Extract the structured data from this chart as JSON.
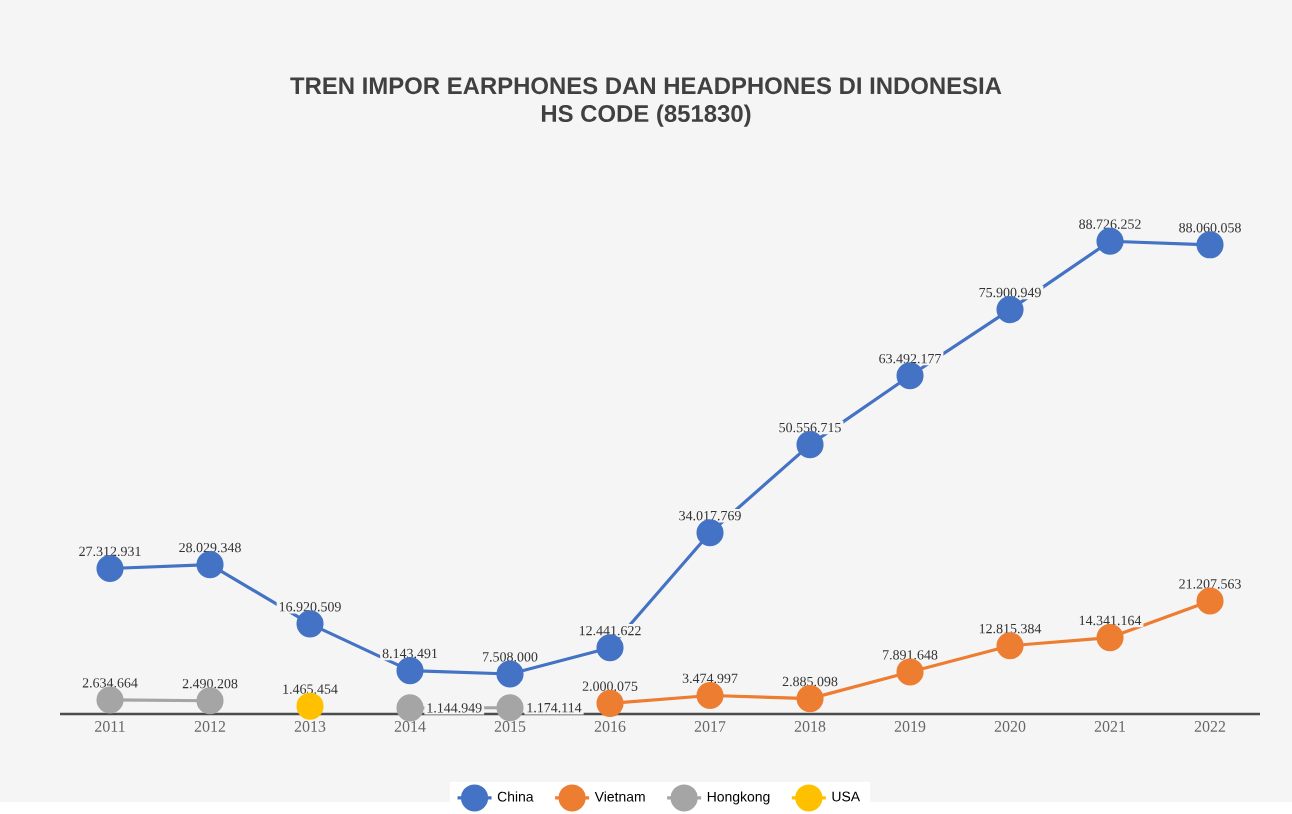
{
  "chart_data": {
    "type": "line",
    "title": "TREN IMPOR EARPHONES DAN HEADPHONES DI INDONESIA",
    "subtitle": "HS CODE (851830)",
    "categories": [
      "2011",
      "2012",
      "2013",
      "2014",
      "2015",
      "2016",
      "2017",
      "2018",
      "2019",
      "2020",
      "2021",
      "2022"
    ],
    "series": [
      {
        "name": "China",
        "color": "#4472c4",
        "values": [
          27312931,
          28029348,
          16920509,
          8143491,
          7508000,
          12441622,
          34017769,
          50556715,
          63492177,
          75900949,
          88726252,
          88060058
        ],
        "value_labels": [
          "27.312.931",
          "28.029.348",
          "16.920.509",
          "8.143.491",
          "7.508.000",
          "12.441.622",
          "34.017.769",
          "50.556.715",
          "63.492.177",
          "75.900.949",
          "88.726.252",
          "88.060.058"
        ]
      },
      {
        "name": "Vietnam",
        "color": "#ed7d31",
        "values": [
          null,
          null,
          null,
          null,
          null,
          2000075,
          3474997,
          2885098,
          7891648,
          12815384,
          14341164,
          21207563
        ],
        "value_labels": [
          null,
          null,
          null,
          null,
          null,
          "2.000.075",
          "3.474.997",
          "2.885.098",
          "7.891.648",
          "12.815.384",
          "14.341.164",
          "21.207.563"
        ]
      },
      {
        "name": "Hongkong",
        "color": "#a5a5a5",
        "values": [
          2634664,
          2490208,
          null,
          1144949,
          1174114,
          null,
          null,
          null,
          null,
          null,
          null,
          null
        ],
        "value_labels": [
          "2.634.664",
          "2.490.208",
          null,
          "1.144.949",
          "1.174.114",
          null,
          null,
          null,
          null,
          null,
          null,
          null
        ]
      },
      {
        "name": "USA",
        "color": "#ffc000",
        "values": [
          null,
          null,
          1465454,
          null,
          null,
          null,
          null,
          null,
          null,
          null,
          null,
          null
        ],
        "value_labels": [
          null,
          null,
          "1.465.454",
          null,
          null,
          null,
          null,
          null,
          null,
          null,
          null,
          null
        ]
      }
    ],
    "tick_labels": "x",
    "legend": "bottom",
    "marker": "circle",
    "line_style": "solid"
  }
}
